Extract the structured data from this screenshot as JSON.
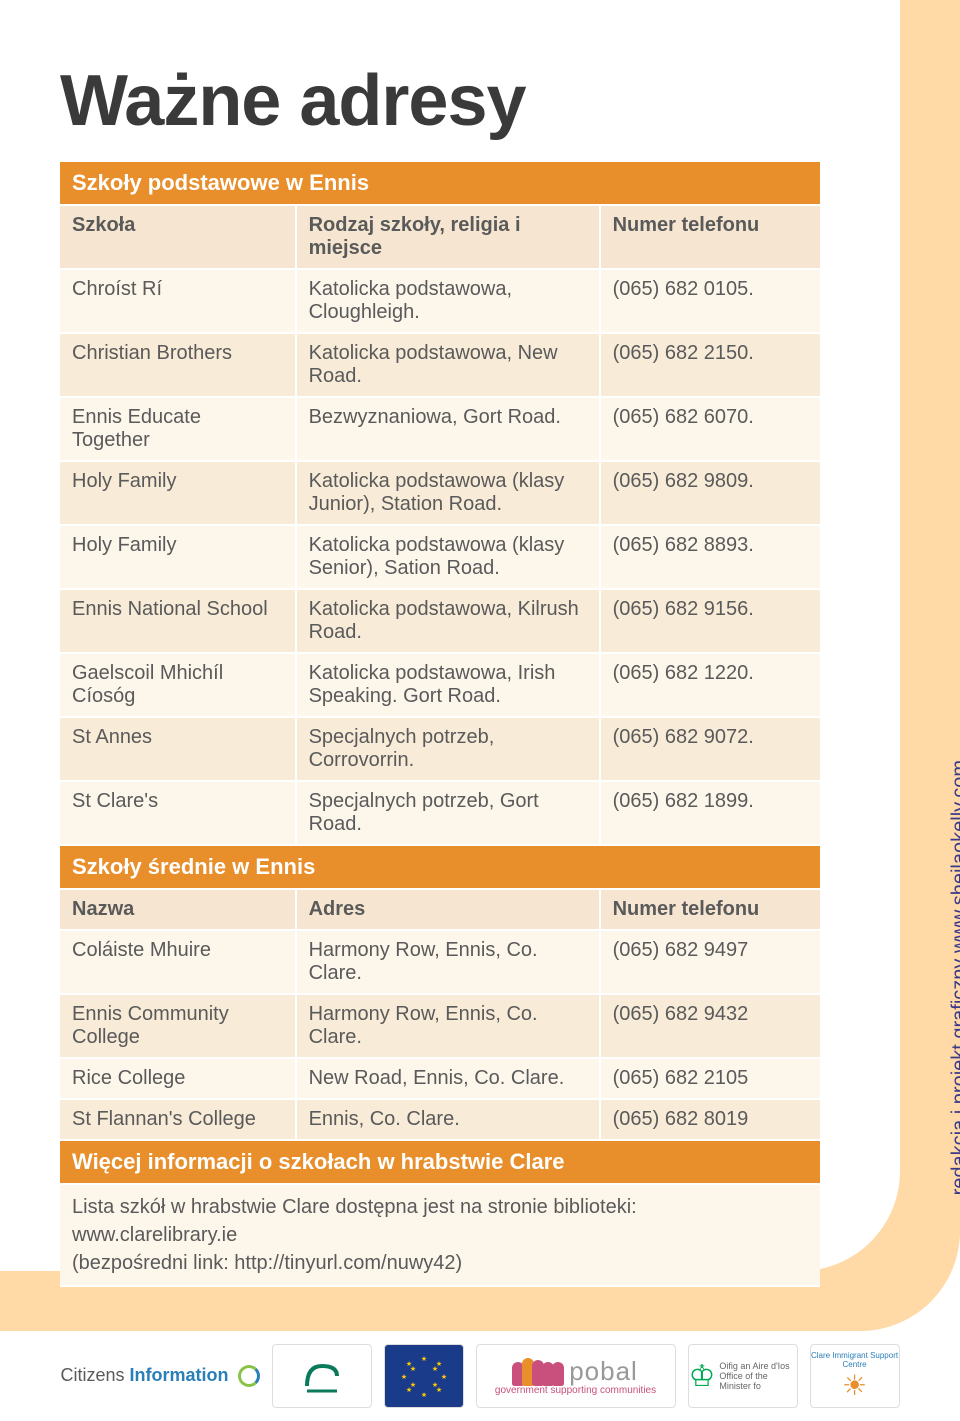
{
  "title": "Ważne adresy",
  "side_text": "redakcja i projekt graficzny www.sheilaokelly.com",
  "colors": {
    "section_header_bg": "#e88f2c",
    "section_header_fg": "#ffffff",
    "col_header_bg": "#f6e6d1",
    "row_light_bg": "#fdf6eb",
    "row_dark_bg": "#f8ebd8",
    "text_color": "#5a5a5a",
    "band_outer": "#ffd9a6",
    "band_mid": "#f9c77a",
    "band_inner": "#f2b24e",
    "band_solid": "#e88f2c",
    "side_text_color": "#3a3a8a"
  },
  "primary_section_label": "Szkoły podstawowe w Ennis",
  "primary_headers": [
    "Szkoła",
    "Rodzaj szkoły, religia i miejsce",
    "Numer telefonu"
  ],
  "primary_rows": [
    {
      "c1": "Chroíst Rí",
      "c2": "Katolicka podstawowa, Cloughleigh.",
      "c3": "(065) 682 0105."
    },
    {
      "c1": "Christian Brothers",
      "c2": "Katolicka podstawowa, New Road.",
      "c3": "(065) 682 2150."
    },
    {
      "c1": "Ennis Educate Together",
      "c2": "Bezwyznaniowa, Gort Road.",
      "c3": "(065) 682 6070."
    },
    {
      "c1": "Holy Family",
      "c2": "Katolicka podstawowa (klasy Junior), Station Road.",
      "c3": "(065) 682 9809."
    },
    {
      "c1": "Holy Family",
      "c2": "Katolicka podstawowa (klasy Senior), Sation Road.",
      "c3": "(065) 682 8893."
    },
    {
      "c1": "Ennis National School",
      "c2": "Katolicka podstawowa, Kilrush Road.",
      "c3": "(065) 682 9156."
    },
    {
      "c1": "Gaelscoil Mhichíl Cíosóg",
      "c2": "Katolicka podstawowa, Irish Speaking. Gort Road.",
      "c3": "(065) 682 1220."
    },
    {
      "c1": "St Annes",
      "c2": "Specjalnych potrzeb, Corrovorrin.",
      "c3": "(065) 682 9072."
    },
    {
      "c1": "St Clare's",
      "c2": "Specjalnych potrzeb, Gort Road.",
      "c3": "(065) 682 1899."
    }
  ],
  "secondary_section_label": "Szkoły średnie w Ennis",
  "secondary_headers": [
    "Nazwa",
    "Adres",
    "Numer telefonu"
  ],
  "secondary_rows": [
    {
      "c1": "Coláiste Mhuire",
      "c2": "Harmony Row, Ennis, Co. Clare.",
      "c3": "(065) 682 9497"
    },
    {
      "c1": "Ennis Community College",
      "c2": "Harmony Row, Ennis, Co. Clare.",
      "c3": "(065) 682 9432"
    },
    {
      "c1": "Rice College",
      "c2": "New Road, Ennis, Co. Clare.",
      "c3": "(065) 682 2105"
    },
    {
      "c1": "St Flannan's College",
      "c2": "Ennis, Co. Clare.",
      "c3": "(065) 682 8019"
    }
  ],
  "info_section_label": "Więcej informacji o szkołach w hrabstwie Clare",
  "info_lines": [
    "Lista szkół w hrabstwie Clare dostępna jest na stronie biblioteki:",
    "www.clarelibrary.ie",
    "(bezpośredni link: http://tinyurl.com/nuwy42)"
  ],
  "footer": {
    "citizens_pre": "Citizens ",
    "citizens_info": "Information",
    "hse": "HSE",
    "eu": "★",
    "pobal_text": "pobal",
    "pobal_sub": "government supporting communities",
    "harp_line1": "Oifig an Aire d'Ios",
    "harp_line2": "Office of the Minister fo",
    "cic_top": "Clare Immigrant Support Centre"
  }
}
